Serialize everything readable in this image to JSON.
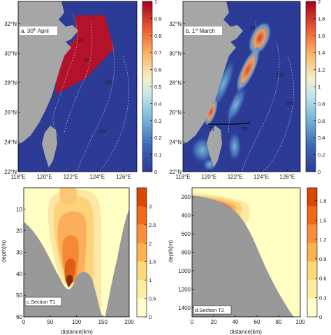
{
  "chart_data": [
    {
      "type": "heatmap",
      "panel_label": "a. 30",
      "panel_label_sup": "th",
      "panel_label_tail": " April",
      "x_ticks": [
        "118°E",
        "120°E",
        "122°E",
        "124°E",
        "126°E"
      ],
      "y_ticks": [
        "32°N",
        "30°N",
        "28°N",
        "26°N",
        "24°N",
        "22°N"
      ],
      "x_values": [
        118,
        120,
        122,
        124,
        126
      ],
      "y_values": [
        32,
        30,
        28,
        26,
        24,
        22
      ],
      "xlim": [
        118,
        127
      ],
      "ylim": [
        22,
        33.5
      ],
      "colorbar": {
        "min": 0,
        "max": 1,
        "ticks": [
          "0",
          "0.1",
          "0.2",
          "0.3",
          "0.4",
          "0.5",
          "0.6",
          "0.7",
          "0.8",
          "0.9",
          "1"
        ]
      },
      "region_value": 1,
      "isobath_labels": [
        "20",
        "50",
        "100",
        "200"
      ]
    },
    {
      "type": "heatmap",
      "panel_label": "b. 1",
      "panel_label_sup": "st",
      "panel_label_tail": " March",
      "x_ticks": [
        "118°E",
        "120°E",
        "122°E",
        "124°E",
        "126°E"
      ],
      "y_ticks": [
        "32°N",
        "30°N",
        "28°N",
        "26°N",
        "24°N",
        "22°N"
      ],
      "x_values": [
        118,
        120,
        122,
        124,
        126
      ],
      "y_values": [
        32,
        30,
        28,
        26,
        24,
        22
      ],
      "xlim": [
        118,
        127
      ],
      "ylim": [
        22,
        33.5
      ],
      "colorbar": {
        "min": 0,
        "max": 2,
        "ticks": [
          "0",
          "0.2",
          "0.4",
          "0.6",
          "0.8",
          "1",
          "1.2",
          "1.4",
          "1.6",
          "1.8",
          "2"
        ]
      },
      "section_labels": [
        "T1",
        "T2"
      ],
      "isobath_labels": [
        "50",
        "100",
        "200"
      ]
    },
    {
      "type": "heatmap",
      "panel_label": "c.Section T1",
      "xlabel": "distance(km)",
      "ylabel": "depth(m)",
      "x_ticks": [
        "0",
        "50",
        "100",
        "150",
        "200"
      ],
      "y_ticks": [
        "10",
        "20",
        "30",
        "40",
        "50",
        "60"
      ],
      "xlim": [
        0,
        200
      ],
      "ylim": [
        60,
        0
      ],
      "colorbar": {
        "min": 0,
        "max": 3.5,
        "ticks": [
          "0",
          "0.5",
          "1",
          "1.5",
          "2",
          "2.5",
          "3"
        ]
      }
    },
    {
      "type": "heatmap",
      "panel_label": "d.Section T2",
      "xlabel": "distance(km)",
      "ylabel": "depth(m)",
      "x_ticks": [
        "0",
        "20",
        "40",
        "60",
        "80",
        "100"
      ],
      "y_ticks": [
        "200",
        "400",
        "600",
        "800",
        "1000",
        "1200",
        "1400"
      ],
      "xlim": [
        0,
        100
      ],
      "ylim": [
        1500,
        100
      ],
      "colorbar": {
        "min": 0,
        "max": 2,
        "ticks": [
          "0",
          "0.3",
          "0.6",
          "0.9",
          "1.2",
          "1.5",
          "1.8"
        ]
      }
    }
  ],
  "colors": {
    "ocean": "#2c3b96",
    "land": "#a6a6a6",
    "patch": "#b3122a",
    "section_land": "#999999",
    "section_bg": "#ffffc4"
  }
}
